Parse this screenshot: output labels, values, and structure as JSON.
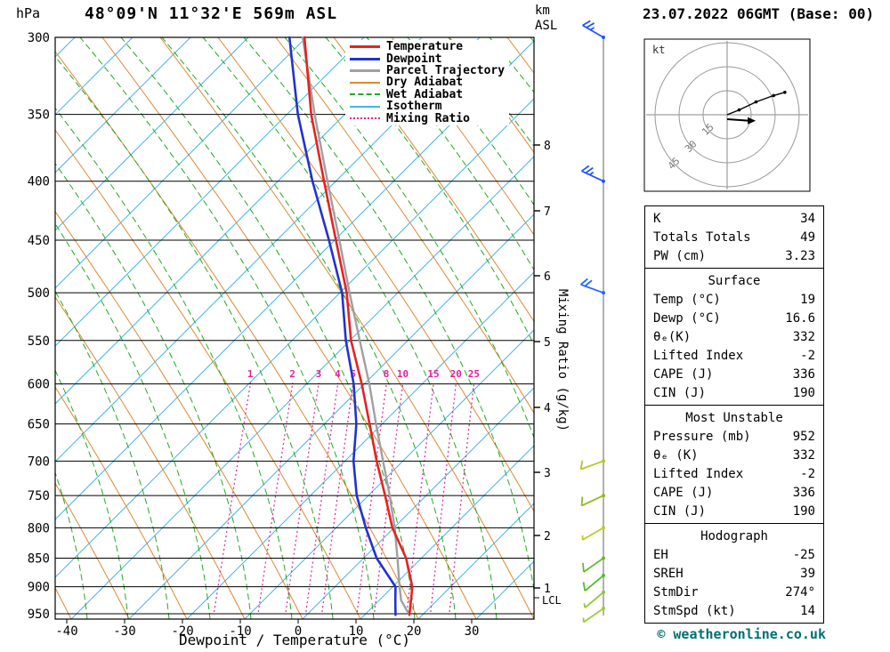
{
  "header": {
    "pressure_unit": "hPa",
    "title": "48°09'N 11°32'E 569m ASL",
    "km_label": "km",
    "asl_label": "ASL",
    "date": "23.07.2022 06GMT (Base: 00)"
  },
  "legend": {
    "items": [
      {
        "label": "Temperature",
        "color": "#e62222",
        "width": 3,
        "style": "solid"
      },
      {
        "label": "Dewpoint",
        "color": "#2233cc",
        "width": 3,
        "style": "solid"
      },
      {
        "label": "Parcel Trajectory",
        "color": "#a0a0a0",
        "width": 3,
        "style": "solid"
      },
      {
        "label": "Dry Adiabat",
        "color": "#dd8833",
        "width": 2,
        "style": "solid"
      },
      {
        "label": "Wet Adiabat",
        "color": "#22aa22",
        "width": 2,
        "style": "dashed"
      },
      {
        "label": "Isotherm",
        "color": "#45b5e8",
        "width": 2,
        "style": "solid"
      },
      {
        "label": "Mixing Ratio",
        "color": "#e020a0",
        "width": 2,
        "style": "dotted"
      }
    ]
  },
  "chart_data": {
    "type": "skewt_log_p",
    "x_axis": {
      "label": "Dewpoint / Temperature (°C)",
      "ticks": [
        -40,
        -30,
        -20,
        -10,
        0,
        10,
        20,
        30
      ],
      "unit": "°C"
    },
    "y_axis": {
      "unit": "hPa",
      "scale": "log",
      "ticks": [
        300,
        350,
        400,
        450,
        500,
        550,
        600,
        650,
        700,
        750,
        800,
        850,
        900,
        950
      ]
    },
    "km_asl_axis": {
      "ticks": [
        1,
        2,
        3,
        4,
        5,
        6,
        7,
        8
      ],
      "lcl_label": "LCL"
    },
    "mixing_ratio_axis": {
      "label": "Mixing Ratio (g/kg)",
      "ticks": [
        1,
        2,
        3,
        4,
        5,
        8,
        10,
        15,
        20,
        25
      ]
    },
    "sounding": {
      "pressure_hpa": [
        952,
        925,
        900,
        850,
        800,
        750,
        700,
        650,
        600,
        550,
        500,
        450,
        400,
        350,
        300
      ],
      "temperature_c": [
        19,
        18.5,
        18,
        15.4,
        11.4,
        8.4,
        5.1,
        1.9,
        -1.6,
        -5.8,
        -9.1,
        -13.8,
        -19,
        -24.8,
        -30.1
      ],
      "dewpoint_c": [
        16.6,
        15.8,
        15.1,
        10.3,
        6.8,
        3.5,
        1.1,
        -0.4,
        -3,
        -6.7,
        -9.9,
        -15,
        -21,
        -27.1,
        -32.7
      ],
      "parcel_c": [
        19,
        16.8,
        15.8,
        13.9,
        11.8,
        9.2,
        6.2,
        3.0,
        -0.3,
        -4.3,
        -8.6,
        -13.2,
        -18.4,
        -24.2,
        -30.4
      ]
    },
    "wind_barbs": [
      {
        "p": 300,
        "spd": 25,
        "dir": 300,
        "color": "#2255ff"
      },
      {
        "p": 400,
        "spd": 25,
        "dir": 295,
        "color": "#2255ff"
      },
      {
        "p": 500,
        "spd": 20,
        "dir": 290,
        "color": "#2266ff"
      },
      {
        "p": 700,
        "spd": 10,
        "dir": 250,
        "color": "#aacc22"
      },
      {
        "p": 750,
        "spd": 10,
        "dir": 245,
        "color": "#88bb22"
      },
      {
        "p": 800,
        "spd": 5,
        "dir": 240,
        "color": "#bbcc22"
      },
      {
        "p": 850,
        "spd": 10,
        "dir": 235,
        "color": "#66bb33"
      },
      {
        "p": 880,
        "spd": 10,
        "dir": 230,
        "color": "#55bb33"
      },
      {
        "p": 910,
        "spd": 5,
        "dir": 230,
        "color": "#88cc33"
      },
      {
        "p": 940,
        "spd": 5,
        "dir": 235,
        "color": "#99cc33"
      }
    ]
  },
  "hodograph": {
    "unit_label": "kt",
    "ring_labels": [
      "15",
      "30",
      "45"
    ],
    "ring_kt": [
      15,
      30,
      45
    ],
    "trace_kt": [
      [
        0,
        0
      ],
      [
        7.5,
        3
      ],
      [
        18,
        8
      ],
      [
        29,
        12
      ],
      [
        36,
        14
      ]
    ],
    "storm_motion": {
      "dir_deg": 274,
      "speed_kt": 14
    }
  },
  "table": {
    "panels": [
      {
        "title": "",
        "rows": [
          [
            "K",
            "34"
          ],
          [
            "Totals Totals",
            "49"
          ],
          [
            "PW (cm)",
            "3.23"
          ]
        ]
      },
      {
        "title": "Surface",
        "rows": [
          [
            "Temp (°C)",
            "19"
          ],
          [
            "Dewp (°C)",
            "16.6"
          ],
          [
            "θₑ(K)",
            "332"
          ],
          [
            "Lifted Index",
            "-2"
          ],
          [
            "CAPE (J)",
            "336"
          ],
          [
            "CIN (J)",
            "190"
          ]
        ]
      },
      {
        "title": "Most Unstable",
        "rows": [
          [
            "Pressure (mb)",
            "952"
          ],
          [
            "θₑ (K)",
            "332"
          ],
          [
            "Lifted Index",
            "-2"
          ],
          [
            "CAPE (J)",
            "336"
          ],
          [
            "CIN (J)",
            "190"
          ]
        ]
      },
      {
        "title": "Hodograph",
        "rows": [
          [
            "EH",
            "-25"
          ],
          [
            "SREH",
            "39"
          ],
          [
            "StmDir",
            "274°"
          ],
          [
            "StmSpd (kt)",
            "14"
          ]
        ]
      }
    ]
  },
  "footer": {
    "copyright": "© weatheronline.co.uk"
  },
  "colors": {
    "temperature": "#e62222",
    "dewpoint": "#2233cc",
    "parcel": "#a0a0a0",
    "dry_adiabat": "#dd8833",
    "wet_adiabat": "#22aa22",
    "isotherm": "#45b5e8",
    "mixing_ratio": "#e020a0",
    "frame": "#000000",
    "barb_axis": "#999999",
    "copyright": "#007070"
  }
}
